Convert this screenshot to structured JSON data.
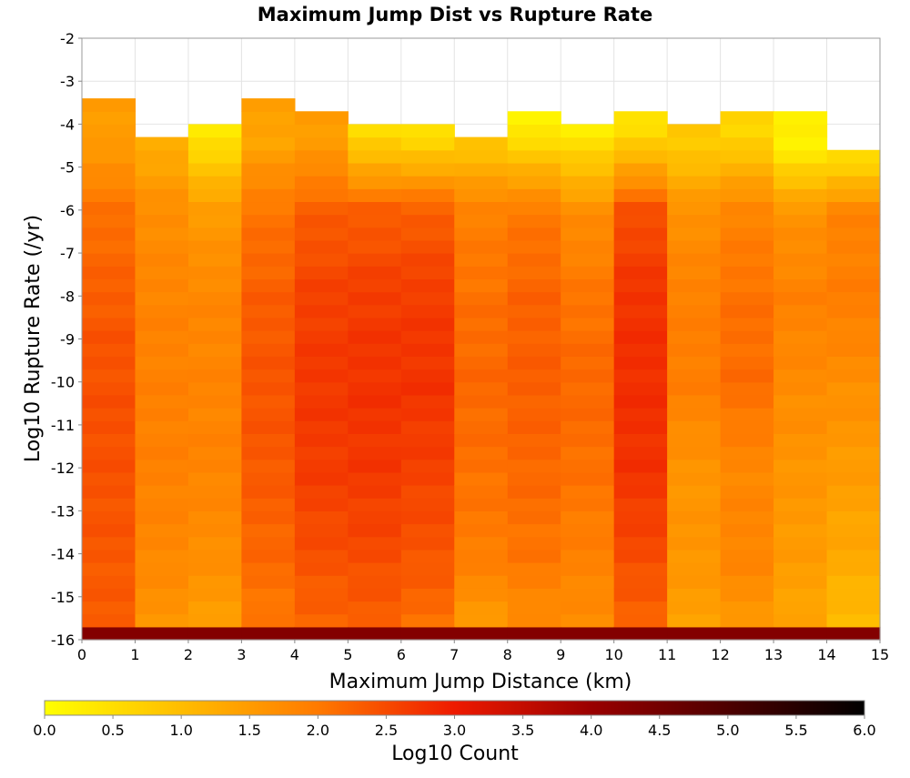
{
  "chart_data": {
    "type": "heatmap",
    "title": "Maximum Jump Dist vs Rupture Rate",
    "xlabel": "Maximum Jump Distance (km)",
    "ylabel": "Log10 Rupture Rate (/yr)",
    "xlim": [
      0,
      15
    ],
    "ylim": [
      -16,
      -2
    ],
    "x_ticks": [
      "0",
      "1",
      "2",
      "3",
      "4",
      "5",
      "6",
      "7",
      "8",
      "9",
      "10",
      "11",
      "12",
      "13",
      "14",
      "15"
    ],
    "y_ticks": [
      "-2",
      "-3",
      "-4",
      "-5",
      "-6",
      "-7",
      "-8",
      "-9",
      "-10",
      "-11",
      "-12",
      "-13",
      "-14",
      "-15",
      "-16"
    ],
    "x_bin_width": 1,
    "y_bin_height": 0.3,
    "y_bin_start": -16,
    "colorbar": {
      "label": "Log10 Count",
      "range": [
        0,
        6
      ],
      "ticks": [
        "0.0",
        "0.5",
        "1.0",
        "1.5",
        "2.0",
        "2.5",
        "3.0",
        "3.5",
        "4.0",
        "4.5",
        "5.0",
        "5.5",
        "6.0"
      ],
      "stops": [
        {
          "value": 0.0,
          "color": "#ffff00"
        },
        {
          "value": 2.0,
          "color": "#ff7a00"
        },
        {
          "value": 3.0,
          "color": "#ee1a00"
        },
        {
          "value": 4.0,
          "color": "#9a0000"
        },
        {
          "value": 6.0,
          "color": "#000000"
        }
      ]
    },
    "bottom_row_value": 4.3,
    "columns": [
      {
        "x0": 0,
        "top": -3.3,
        "profile": [
          [
            -4.5,
            1.5
          ],
          [
            -6,
            2.1
          ],
          [
            -7.5,
            2.25
          ],
          [
            -9,
            2.4
          ],
          [
            -11,
            2.45
          ],
          [
            -13,
            2.4
          ],
          [
            -15.7,
            2.3
          ]
        ]
      },
      {
        "x0": 1,
        "top": -4.2,
        "profile": [
          [
            -4.5,
            1.25
          ],
          [
            -6,
            1.7
          ],
          [
            -8,
            1.85
          ],
          [
            -10,
            1.9
          ],
          [
            -12,
            1.9
          ],
          [
            -14,
            1.8
          ],
          [
            -15.7,
            1.6
          ]
        ]
      },
      {
        "x0": 2,
        "top": -3.9,
        "profile": [
          [
            -4.1,
            0.3
          ],
          [
            -6,
            1.5
          ],
          [
            -8,
            1.8
          ],
          [
            -10,
            1.85
          ],
          [
            -12,
            1.85
          ],
          [
            -14,
            1.7
          ],
          [
            -15.7,
            1.45
          ]
        ]
      },
      {
        "x0": 3,
        "top": -3.3,
        "profile": [
          [
            -4.5,
            1.4
          ],
          [
            -6,
            2.05
          ],
          [
            -8,
            2.3
          ],
          [
            -10,
            2.4
          ],
          [
            -12,
            2.35
          ],
          [
            -14,
            2.2
          ],
          [
            -15.7,
            2.0
          ]
        ]
      },
      {
        "x0": 4,
        "top": -3.6,
        "profile": [
          [
            -4.5,
            1.5
          ],
          [
            -6,
            2.3
          ],
          [
            -8,
            2.6
          ],
          [
            -10,
            2.7
          ],
          [
            -12,
            2.65
          ],
          [
            -14,
            2.45
          ],
          [
            -15.7,
            2.2
          ]
        ]
      },
      {
        "x0": 5,
        "top": -3.9,
        "profile": [
          [
            -4.2,
            0.5
          ],
          [
            -6,
            2.3
          ],
          [
            -8,
            2.65
          ],
          [
            -10,
            2.75
          ],
          [
            -12,
            2.7
          ],
          [
            -14,
            2.5
          ],
          [
            -15.7,
            2.25
          ]
        ]
      },
      {
        "x0": 6,
        "top": -3.9,
        "profile": [
          [
            -4.2,
            0.4
          ],
          [
            -6,
            2.3
          ],
          [
            -8,
            2.65
          ],
          [
            -10,
            2.75
          ],
          [
            -12,
            2.6
          ],
          [
            -14,
            2.4
          ],
          [
            -15.7,
            2.1
          ]
        ]
      },
      {
        "x0": 7,
        "top": -4.2,
        "profile": [
          [
            -4.5,
            0.9
          ],
          [
            -6,
            1.9
          ],
          [
            -8,
            2.1
          ],
          [
            -10,
            2.2
          ],
          [
            -12,
            2.1
          ],
          [
            -14,
            1.95
          ],
          [
            -15.7,
            1.5
          ]
        ]
      },
      {
        "x0": 8,
        "top": -3.6,
        "profile": [
          [
            -4.0,
            0.2
          ],
          [
            -6,
            2.0
          ],
          [
            -8,
            2.25
          ],
          [
            -10,
            2.3
          ],
          [
            -12,
            2.2
          ],
          [
            -14,
            2.05
          ],
          [
            -15.7,
            1.7
          ]
        ]
      },
      {
        "x0": 9,
        "top": -3.9,
        "profile": [
          [
            -4.2,
            0.3
          ],
          [
            -6,
            1.7
          ],
          [
            -8,
            2.05
          ],
          [
            -10,
            2.2
          ],
          [
            -12,
            2.1
          ],
          [
            -14,
            1.9
          ],
          [
            -15.7,
            1.7
          ]
        ]
      },
      {
        "x0": 10,
        "top": -3.6,
        "profile": [
          [
            -4.2,
            0.5
          ],
          [
            -6,
            2.45
          ],
          [
            -8,
            2.75
          ],
          [
            -10,
            2.8
          ],
          [
            -12,
            2.75
          ],
          [
            -14,
            2.5
          ],
          [
            -15.7,
            2.2
          ]
        ]
      },
      {
        "x0": 11,
        "top": -3.9,
        "profile": [
          [
            -4.5,
            0.8
          ],
          [
            -6,
            1.65
          ],
          [
            -8,
            1.9
          ],
          [
            -10,
            1.95
          ],
          [
            -12,
            1.6
          ],
          [
            -14,
            1.6
          ],
          [
            -15.7,
            1.4
          ]
        ]
      },
      {
        "x0": 12,
        "top": -3.6,
        "profile": [
          [
            -4.2,
            0.6
          ],
          [
            -6,
            1.85
          ],
          [
            -8,
            2.1
          ],
          [
            -10,
            2.15
          ],
          [
            -12,
            1.8
          ],
          [
            -14,
            1.85
          ],
          [
            -15.7,
            1.55
          ]
        ]
      },
      {
        "x0": 13,
        "top": -3.6,
        "profile": [
          [
            -4.6,
            0.25
          ],
          [
            -6,
            1.6
          ],
          [
            -8,
            1.9
          ],
          [
            -10,
            1.75
          ],
          [
            -12,
            1.6
          ],
          [
            -14,
            1.5
          ],
          [
            -15.7,
            1.35
          ]
        ]
      },
      {
        "x0": 14,
        "top": -4.5,
        "profile": [
          [
            -4.8,
            0.5
          ],
          [
            -6,
            1.85
          ],
          [
            -8,
            1.95
          ],
          [
            -10,
            1.7
          ],
          [
            -12,
            1.5
          ],
          [
            -14,
            1.3
          ],
          [
            -15.7,
            1.0
          ]
        ]
      }
    ]
  }
}
